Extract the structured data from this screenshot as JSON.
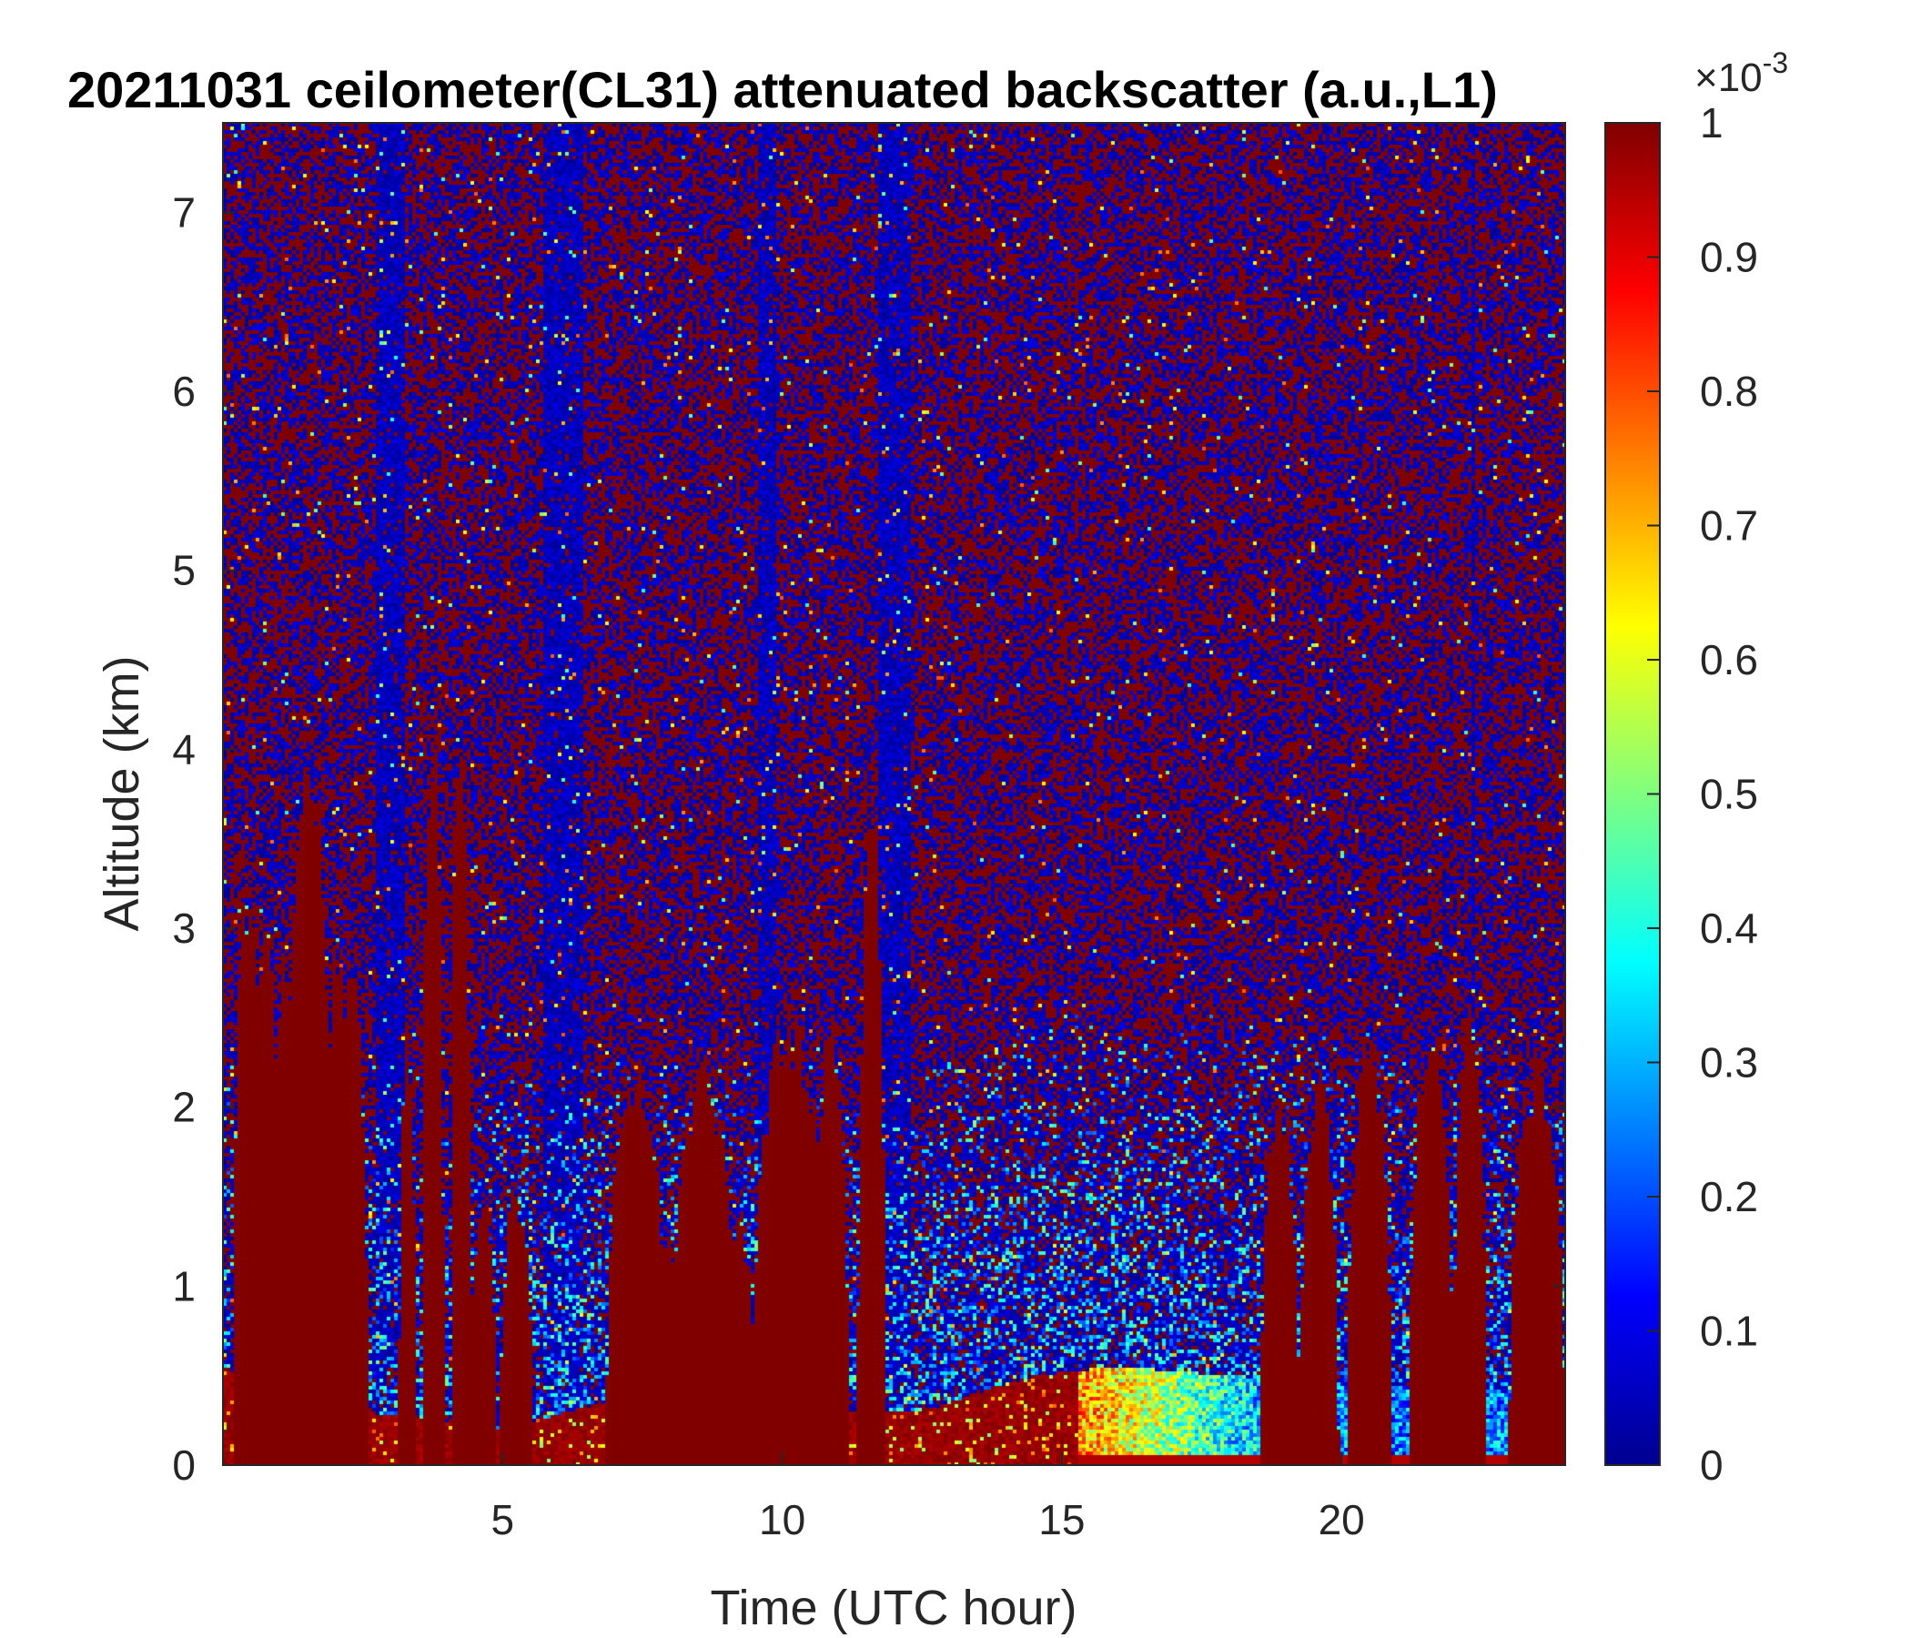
{
  "chart_data": {
    "type": "heatmap",
    "title": "20211031 ceilometer(CL31) attenuated backscatter (a.u.,L1)",
    "xlabel": "Time (UTC hour)",
    "ylabel": "Altitude (km)",
    "xlim": [
      0,
      24
    ],
    "ylim": [
      0,
      7.5
    ],
    "xticks": [
      5,
      10,
      15,
      20
    ],
    "yticks": [
      0,
      1,
      2,
      3,
      4,
      5,
      6,
      7
    ],
    "colorbar": {
      "colormap": "jet",
      "clim": [
        0,
        1
      ],
      "ticks": [
        0,
        0.1,
        0.2,
        0.3,
        0.4,
        0.5,
        0.6,
        0.7,
        0.8,
        0.9,
        1
      ],
      "scale_label_base": "×10",
      "scale_label_exponent": "-3"
    },
    "plumes": [
      {
        "t": 0.45,
        "top": 3.5,
        "w": 0.28
      },
      {
        "t": 0.75,
        "top": 3.1,
        "w": 0.3
      },
      {
        "t": 1.15,
        "top": 3.0,
        "w": 0.28
      },
      {
        "t": 1.55,
        "top": 4.2,
        "w": 0.4
      },
      {
        "t": 2.05,
        "top": 3.1,
        "w": 0.22
      },
      {
        "t": 2.3,
        "top": 2.9,
        "w": 0.3
      },
      {
        "t": 3.3,
        "top": 2.5,
        "w": 0.15
      },
      {
        "t": 3.75,
        "top": 4.5,
        "w": 0.2
      },
      {
        "t": 4.25,
        "top": 4.5,
        "w": 0.18
      },
      {
        "t": 4.65,
        "top": 1.5,
        "w": 0.25
      },
      {
        "t": 5.25,
        "top": 1.6,
        "w": 0.3
      },
      {
        "t": 7.4,
        "top": 2.3,
        "w": 0.55
      },
      {
        "t": 7.9,
        "top": 1.3,
        "w": 0.5
      },
      {
        "t": 8.6,
        "top": 2.3,
        "w": 0.6
      },
      {
        "t": 9.2,
        "top": 1.4,
        "w": 0.35
      },
      {
        "t": 10.15,
        "top": 2.6,
        "w": 0.7
      },
      {
        "t": 10.85,
        "top": 2.5,
        "w": 0.35
      },
      {
        "t": 11.6,
        "top": 3.8,
        "w": 0.25
      },
      {
        "t": 18.9,
        "top": 2.1,
        "w": 0.35
      },
      {
        "t": 19.6,
        "top": 2.3,
        "w": 0.35
      },
      {
        "t": 20.5,
        "top": 2.5,
        "w": 0.4
      },
      {
        "t": 21.6,
        "top": 2.5,
        "w": 0.4
      },
      {
        "t": 22.3,
        "top": 2.6,
        "w": 0.3
      },
      {
        "t": 23.5,
        "top": 2.3,
        "w": 0.5
      }
    ],
    "boundary_layer": [
      {
        "t": 0,
        "h": 0.55
      },
      {
        "t": 2.5,
        "h": 0.3
      },
      {
        "t": 5,
        "h": 0.2
      },
      {
        "t": 6.8,
        "h": 0.35
      },
      {
        "t": 10,
        "h": 0.3
      },
      {
        "t": 12.5,
        "h": 0.3
      },
      {
        "t": 14.5,
        "h": 0.5
      },
      {
        "t": 16,
        "h": 0.55
      },
      {
        "t": 18,
        "h": 0.5
      },
      {
        "t": 20,
        "h": 0.45
      },
      {
        "t": 24,
        "h": 0.4
      }
    ],
    "low_signal_columns": [
      {
        "t": 3.0,
        "w": 0.5
      },
      {
        "t": 6.1,
        "w": 0.7
      },
      {
        "t": 9.75,
        "w": 0.3
      },
      {
        "t": 12.0,
        "w": 0.6
      },
      {
        "t": 22.35,
        "w": 0.08
      }
    ]
  }
}
